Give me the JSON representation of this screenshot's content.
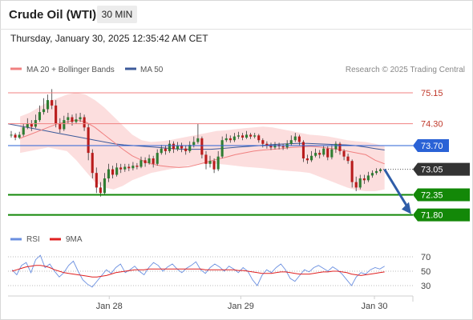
{
  "header": {
    "title": "Crude Oil (WTI)",
    "timeframe": "30 MIN",
    "datetime": "Thursday, January 30, 2025 12:35:42 AM CET"
  },
  "legend": {
    "ma20_label": "MA 20 + Bollinger Bands",
    "ma50_label": "MA 50",
    "ma20_color": "#f08080",
    "ma50_color": "#3c5a9a",
    "copyright": "Research © 2025 Trading Central"
  },
  "rsi_legend": {
    "rsi_label": "RSI",
    "ma9_label": "9MA",
    "rsi_color": "#6a8fe0",
    "ma9_color": "#e02020"
  },
  "chart_data": {
    "type": "line",
    "ylim": [
      71.55,
      75.5
    ],
    "xlim": [
      0,
      100
    ],
    "grid": false,
    "x_ticks": [
      {
        "pos": 25,
        "label": "Jan 28"
      },
      {
        "pos": 57.5,
        "label": "Jan 29"
      },
      {
        "pos": 90.5,
        "label": "Jan 30"
      }
    ],
    "levels": [
      {
        "value": 75.15,
        "label": "75.15",
        "style": "resistance-thin",
        "color": "#f08080"
      },
      {
        "value": 74.3,
        "label": "74.30",
        "style": "resistance-thin",
        "color": "#f08080"
      },
      {
        "value": 73.7,
        "label": "73.70",
        "style": "pivot",
        "color": "#2a62d6"
      },
      {
        "value": 73.05,
        "label": "73.05",
        "style": "last-price",
        "color": "#333333"
      },
      {
        "value": 72.35,
        "label": "72.35",
        "style": "support",
        "color": "#138808"
      },
      {
        "value": 71.8,
        "label": "71.80",
        "style": "support",
        "color": "#138808"
      }
    ],
    "candles": [
      [
        74.0,
        74.0,
        74.1,
        73.92
      ],
      [
        74.0,
        73.92,
        74.05,
        73.85
      ],
      [
        73.92,
        74.0,
        74.08,
        73.88
      ],
      [
        74.0,
        74.2,
        74.3,
        73.95
      ],
      [
        74.2,
        74.3,
        74.45,
        74.15
      ],
      [
        74.3,
        74.22,
        74.4,
        74.1
      ],
      [
        74.22,
        74.4,
        74.55,
        74.18
      ],
      [
        74.4,
        74.62,
        74.8,
        74.35
      ],
      [
        74.62,
        74.7,
        75.0,
        74.55
      ],
      [
        74.7,
        74.95,
        75.1,
        74.6
      ],
      [
        74.95,
        74.8,
        75.25,
        74.7
      ],
      [
        74.8,
        74.3,
        74.95,
        74.2
      ],
      [
        74.3,
        74.15,
        74.45,
        74.05
      ],
      [
        74.15,
        74.4,
        74.52,
        74.1
      ],
      [
        74.4,
        74.48,
        74.6,
        74.3
      ],
      [
        74.48,
        74.35,
        74.55,
        74.25
      ],
      [
        74.35,
        74.42,
        74.58,
        74.3
      ],
      [
        74.42,
        74.48,
        74.6,
        74.35
      ],
      [
        74.48,
        74.2,
        74.55,
        74.1
      ],
      [
        74.2,
        73.5,
        74.3,
        73.3
      ],
      [
        73.5,
        72.95,
        73.6,
        72.8
      ],
      [
        72.95,
        72.55,
        73.1,
        72.4
      ],
      [
        72.55,
        72.4,
        72.7,
        72.3
      ],
      [
        72.4,
        72.8,
        72.95,
        72.35
      ],
      [
        72.8,
        73.05,
        73.2,
        72.7
      ],
      [
        73.05,
        72.9,
        73.15,
        72.8
      ],
      [
        72.9,
        73.1,
        73.22,
        72.85
      ],
      [
        73.1,
        73.05,
        73.2,
        72.95
      ],
      [
        73.05,
        73.12,
        73.2,
        72.98
      ],
      [
        73.12,
        73.08,
        73.2,
        73.0
      ],
      [
        73.08,
        73.15,
        73.25,
        73.02
      ],
      [
        73.15,
        73.12,
        73.22,
        73.05
      ],
      [
        73.12,
        73.3,
        73.4,
        73.08
      ],
      [
        73.3,
        73.22,
        73.38,
        73.12
      ],
      [
        73.22,
        73.35,
        73.45,
        73.18
      ],
      [
        73.35,
        73.2,
        73.42,
        73.1
      ],
      [
        73.2,
        73.5,
        73.6,
        73.15
      ],
      [
        73.5,
        73.62,
        73.72,
        73.45
      ],
      [
        73.62,
        73.55,
        73.7,
        73.45
      ],
      [
        73.55,
        73.75,
        73.85,
        73.5
      ],
      [
        73.75,
        73.6,
        73.82,
        73.5
      ],
      [
        73.6,
        73.7,
        73.8,
        73.55
      ],
      [
        73.7,
        73.62,
        73.78,
        73.52
      ],
      [
        73.62,
        73.55,
        73.7,
        73.45
      ],
      [
        73.55,
        73.72,
        73.82,
        73.5
      ],
      [
        73.72,
        73.8,
        73.95,
        73.65
      ],
      [
        73.8,
        73.9,
        74.3,
        73.75
      ],
      [
        73.9,
        73.45,
        73.95,
        73.35
      ],
      [
        73.45,
        73.2,
        73.55,
        73.05
      ],
      [
        73.2,
        73.28,
        73.42,
        73.1
      ],
      [
        73.28,
        73.05,
        73.35,
        72.95
      ],
      [
        73.05,
        73.4,
        73.55,
        73.0
      ],
      [
        73.4,
        73.85,
        73.95,
        73.35
      ],
      [
        73.85,
        73.9,
        74.02,
        73.8
      ],
      [
        73.9,
        73.85,
        73.98,
        73.78
      ],
      [
        73.85,
        73.95,
        74.05,
        73.8
      ],
      [
        73.95,
        73.98,
        74.08,
        73.88
      ],
      [
        73.98,
        73.92,
        74.05,
        73.85
      ],
      [
        73.92,
        74.0,
        74.1,
        73.88
      ],
      [
        74.0,
        73.95,
        74.05,
        73.88
      ],
      [
        73.95,
        73.98,
        74.05,
        73.9
      ],
      [
        73.98,
        73.85,
        74.02,
        73.78
      ],
      [
        73.85,
        73.75,
        73.9,
        73.65
      ],
      [
        73.75,
        73.7,
        73.82,
        73.62
      ],
      [
        73.7,
        73.65,
        73.78,
        73.58
      ],
      [
        73.65,
        73.72,
        73.8,
        73.6
      ],
      [
        73.72,
        73.68,
        73.78,
        73.6
      ],
      [
        73.68,
        73.65,
        73.75,
        73.58
      ],
      [
        73.65,
        73.75,
        73.85,
        73.6
      ],
      [
        73.75,
        73.85,
        73.98,
        73.7
      ],
      [
        73.85,
        73.95,
        74.05,
        73.8
      ],
      [
        73.95,
        73.8,
        74.0,
        73.7
      ],
      [
        73.8,
        73.35,
        73.85,
        73.25
      ],
      [
        73.35,
        73.3,
        73.45,
        73.2
      ],
      [
        73.3,
        73.42,
        73.55,
        73.25
      ],
      [
        73.42,
        73.5,
        73.62,
        73.38
      ],
      [
        73.5,
        73.45,
        73.58,
        73.35
      ],
      [
        73.45,
        73.62,
        73.7,
        73.4
      ],
      [
        73.62,
        73.38,
        73.68,
        73.3
      ],
      [
        73.38,
        73.6,
        73.72,
        73.32
      ],
      [
        73.6,
        73.75,
        73.82,
        73.5
      ],
      [
        73.75,
        73.55,
        73.8,
        73.45
      ],
      [
        73.55,
        73.4,
        73.6,
        73.3
      ],
      [
        73.4,
        73.28,
        73.48,
        73.2
      ],
      [
        73.28,
        72.7,
        73.32,
        72.55
      ],
      [
        72.7,
        72.55,
        72.85,
        72.45
      ],
      [
        72.55,
        72.8,
        72.9,
        72.5
      ],
      [
        72.8,
        72.75,
        72.9,
        72.65
      ],
      [
        72.75,
        72.88,
        72.98,
        72.7
      ],
      [
        72.88,
        72.95,
        73.02,
        72.82
      ],
      [
        72.95,
        73.0,
        73.08,
        72.9
      ],
      [
        73.0,
        73.05,
        73.08,
        72.95
      ]
    ],
    "ma20": [
      73.9,
      74.0,
      74.1,
      74.2,
      74.3,
      74.35,
      74.4,
      74.35,
      74.2,
      74.0,
      73.8,
      73.6,
      73.42,
      73.3,
      73.2,
      73.15,
      73.12,
      73.1,
      73.12,
      73.18,
      73.25,
      73.32,
      73.38,
      73.45,
      73.5,
      73.55,
      73.58,
      73.6,
      73.62,
      73.65,
      73.66,
      73.68,
      73.66,
      73.63,
      73.6,
      73.55,
      73.5,
      73.45,
      73.3,
      73.2
    ],
    "ma50": [
      74.3,
      74.25,
      74.2,
      74.15,
      74.1,
      74.05,
      74.0,
      73.95,
      73.9,
      73.85,
      73.8,
      73.75,
      73.72,
      73.7,
      73.68,
      73.66,
      73.64,
      73.62,
      73.6,
      73.6,
      73.6,
      73.6,
      73.62,
      73.64,
      73.66,
      73.68,
      73.7,
      73.72,
      73.74,
      73.75,
      73.76,
      73.76,
      73.75,
      73.74,
      73.73,
      73.72,
      73.7,
      73.66,
      73.62,
      73.58
    ],
    "bb_upper": [
      74.5,
      74.6,
      74.75,
      74.9,
      75.0,
      75.1,
      75.15,
      75.1,
      74.95,
      74.75,
      74.5,
      74.25,
      74.0,
      73.85,
      73.8,
      73.82,
      73.85,
      73.9,
      73.95,
      74.0,
      74.05,
      74.1,
      74.12,
      74.15,
      74.18,
      74.2,
      74.22,
      74.2,
      74.15,
      74.1,
      74.05,
      74.0,
      73.98,
      73.95,
      73.9,
      73.85,
      73.82,
      73.8,
      73.75,
      73.68
    ],
    "bb_lower": [
      73.5,
      73.55,
      73.6,
      73.65,
      73.6,
      73.55,
      73.3,
      73.0,
      72.7,
      72.55,
      72.5,
      72.6,
      72.75,
      72.85,
      72.95,
      73.0,
      73.05,
      73.1,
      73.15,
      73.18,
      73.2,
      73.2,
      73.18,
      73.15,
      73.12,
      73.1,
      73.08,
      73.05,
      73.02,
      73.0,
      72.98,
      72.95,
      72.85,
      72.75,
      72.65,
      72.55,
      72.48,
      72.45,
      72.45,
      72.5
    ],
    "rsi": {
      "ylim": [
        20,
        80
      ],
      "levels": [
        70,
        50,
        30
      ],
      "rsi_values": [
        52,
        45,
        58,
        62,
        48,
        66,
        72,
        55,
        60,
        50,
        42,
        48,
        58,
        64,
        50,
        38,
        32,
        28,
        36,
        44,
        52,
        47,
        55,
        60,
        48,
        52,
        57,
        50,
        45,
        55,
        62,
        58,
        50,
        56,
        60,
        53,
        48,
        54,
        58,
        63,
        52,
        47,
        55,
        60,
        56,
        50,
        57,
        53,
        48,
        55,
        50,
        38,
        30,
        44,
        52,
        48,
        55,
        60,
        52,
        40,
        36,
        44,
        52,
        49,
        55,
        58,
        54,
        50,
        56,
        52,
        46,
        38,
        30,
        42,
        48,
        46,
        52,
        55,
        53,
        57
      ],
      "ma9_values": [
        50,
        52,
        54,
        56,
        57,
        58,
        58,
        57,
        55,
        52,
        50,
        48,
        47,
        46,
        45,
        44,
        43,
        42,
        42,
        43,
        44,
        46,
        48,
        49,
        50,
        51,
        52,
        52,
        52,
        53,
        53,
        53,
        53,
        53,
        53,
        53,
        53,
        53,
        53,
        53,
        53,
        52,
        52,
        52,
        52,
        52,
        52,
        52,
        51,
        51,
        50,
        49,
        48,
        47,
        47,
        47,
        48,
        49,
        49,
        48,
        47,
        46,
        46,
        46,
        47,
        48,
        49,
        49,
        50,
        50,
        49,
        48,
        46,
        45,
        44,
        45,
        46,
        47,
        48,
        49
      ]
    }
  }
}
